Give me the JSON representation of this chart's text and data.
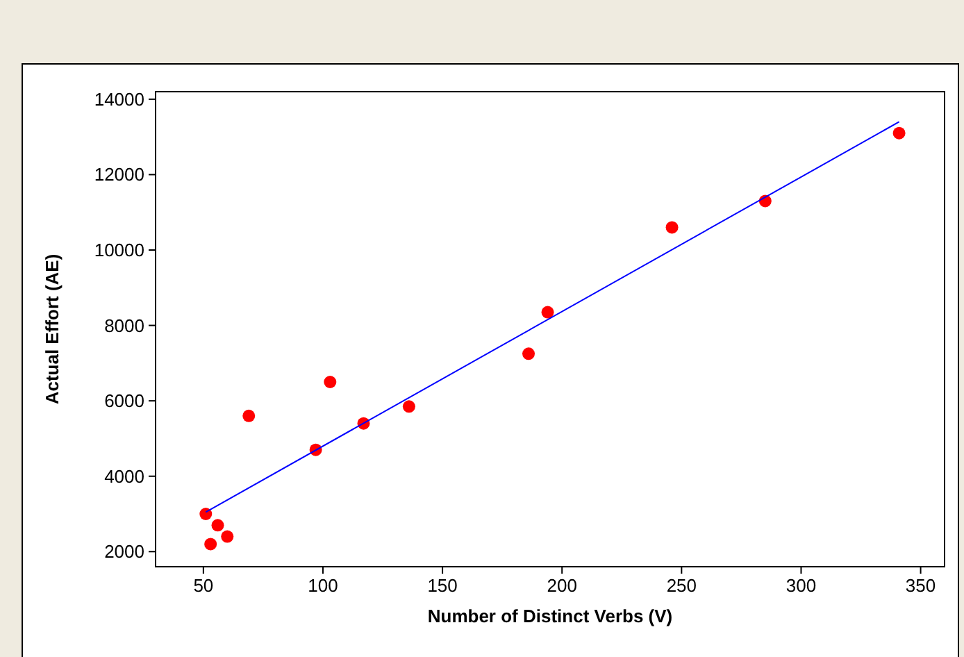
{
  "chart_data": {
    "type": "scatter",
    "xlabel": "Number of Distinct Verbs (V)",
    "ylabel": "Actual Effort (AE)",
    "x": [
      51,
      53,
      56,
      60,
      69,
      97,
      103,
      117,
      136,
      186,
      194,
      246,
      285,
      341
    ],
    "series": [
      {
        "color": "#ff0000",
        "values": [
          3000,
          2200,
          2700,
          2400,
          5600,
          4700,
          6500,
          5400,
          5850,
          7250,
          8350,
          10600,
          11300,
          13100
        ]
      },
      {
        "type": "line",
        "marker": "none",
        "color": "#0000ff",
        "x": [
          51,
          341
        ],
        "values": [
          3050,
          13400
        ]
      }
    ],
    "xlim": [
      30,
      360
    ],
    "ylim": [
      1600,
      14200
    ],
    "xticks": [
      50,
      100,
      150,
      200,
      250,
      300,
      350
    ],
    "yticks": [
      2000,
      4000,
      6000,
      8000,
      10000,
      12000,
      14000
    ],
    "grid": false,
    "marker": "circle",
    "line_style": "solid"
  }
}
